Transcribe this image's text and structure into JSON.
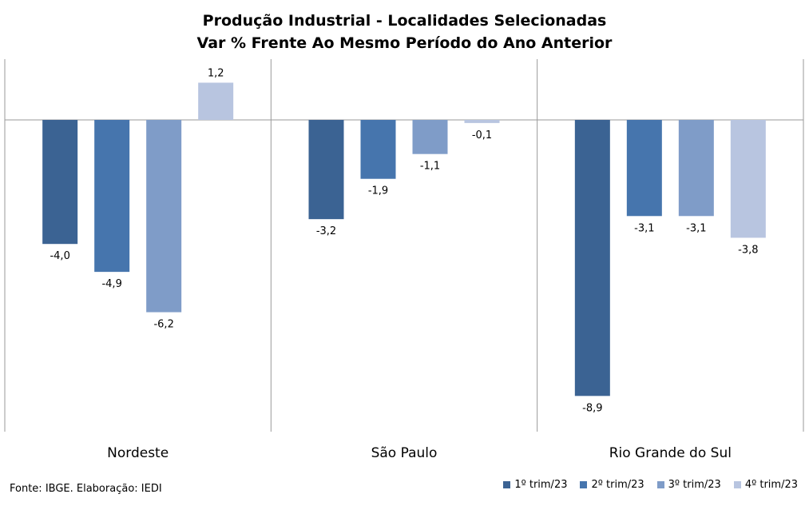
{
  "chart_data": {
    "type": "bar",
    "title": "Produção Industrial - Localidades Selecionadas",
    "subtitle": "Var % Frente Ao Mesmo Período do Ano Anterior",
    "categories": [
      "Nordeste",
      "São Paulo",
      "Rio Grande do Sul"
    ],
    "series": [
      {
        "name": "1º trim/23",
        "color": "#3b6393",
        "values": [
          -4.0,
          -3.2,
          -8.9
        ],
        "labels": [
          "-4,0",
          "-3,2",
          "-8,9"
        ]
      },
      {
        "name": "2º trim/23",
        "color": "#4675ad",
        "values": [
          -4.9,
          -1.9,
          -3.1
        ],
        "labels": [
          "-4,9",
          "-1,9",
          "-3,1"
        ]
      },
      {
        "name": "3º trim/23",
        "color": "#7f9cc8",
        "values": [
          -6.2,
          -1.1,
          -3.1
        ],
        "labels": [
          "-6,2",
          "-1,1",
          "-3,1"
        ]
      },
      {
        "name": "4º trim/23",
        "color": "#b8c5e0",
        "values": [
          1.2,
          -0.1,
          -3.8
        ],
        "labels": [
          "1,2",
          "-0,1",
          "-3,8"
        ]
      }
    ],
    "ylim": [
      -10,
      2
    ],
    "grid": false,
    "legend": "bottom-right"
  },
  "footer": {
    "source": "Fonte: IBGE. Elaboração: IEDI"
  }
}
